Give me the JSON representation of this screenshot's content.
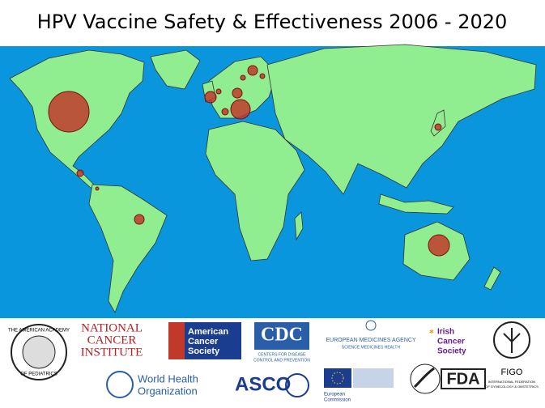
{
  "title": "HPV Vaccine Safety & Effectiveness 2006 - 2020",
  "logos": {
    "aap": {
      "top": "THE AMERICAN ACADEMY",
      "bottom": "OF PEDIATRICS"
    },
    "nci": {
      "line1": "NATIONAL",
      "line2": "CANCER",
      "line3": "INSTITUTE"
    },
    "acs": {
      "line1": "American",
      "line2": "Cancer",
      "line3": "Society"
    },
    "cdc": {
      "name": "CDC",
      "line1": "CENTERS FOR DISEASE",
      "line2": "CONTROL AND PREVENTION"
    },
    "ema": {
      "name": "EUROPEAN MEDICINES AGENCY",
      "tagline": "SCIENCE MEDICINES HEALTH"
    },
    "ics": {
      "line1": "Irish",
      "line2": "Cancer",
      "line3": "Society"
    },
    "figo": {
      "name": "FIGO",
      "line1": "INTERNATIONAL FEDERATION",
      "line2": "OF GYNECOLOGY & OBSTETRICS"
    },
    "who": {
      "line1": "World Health",
      "line2": "Organization"
    },
    "asco": {
      "name": "ASCO"
    },
    "ec": {
      "line1": "European",
      "line2": "Commission"
    },
    "fda": {
      "name": "FDA"
    }
  }
}
